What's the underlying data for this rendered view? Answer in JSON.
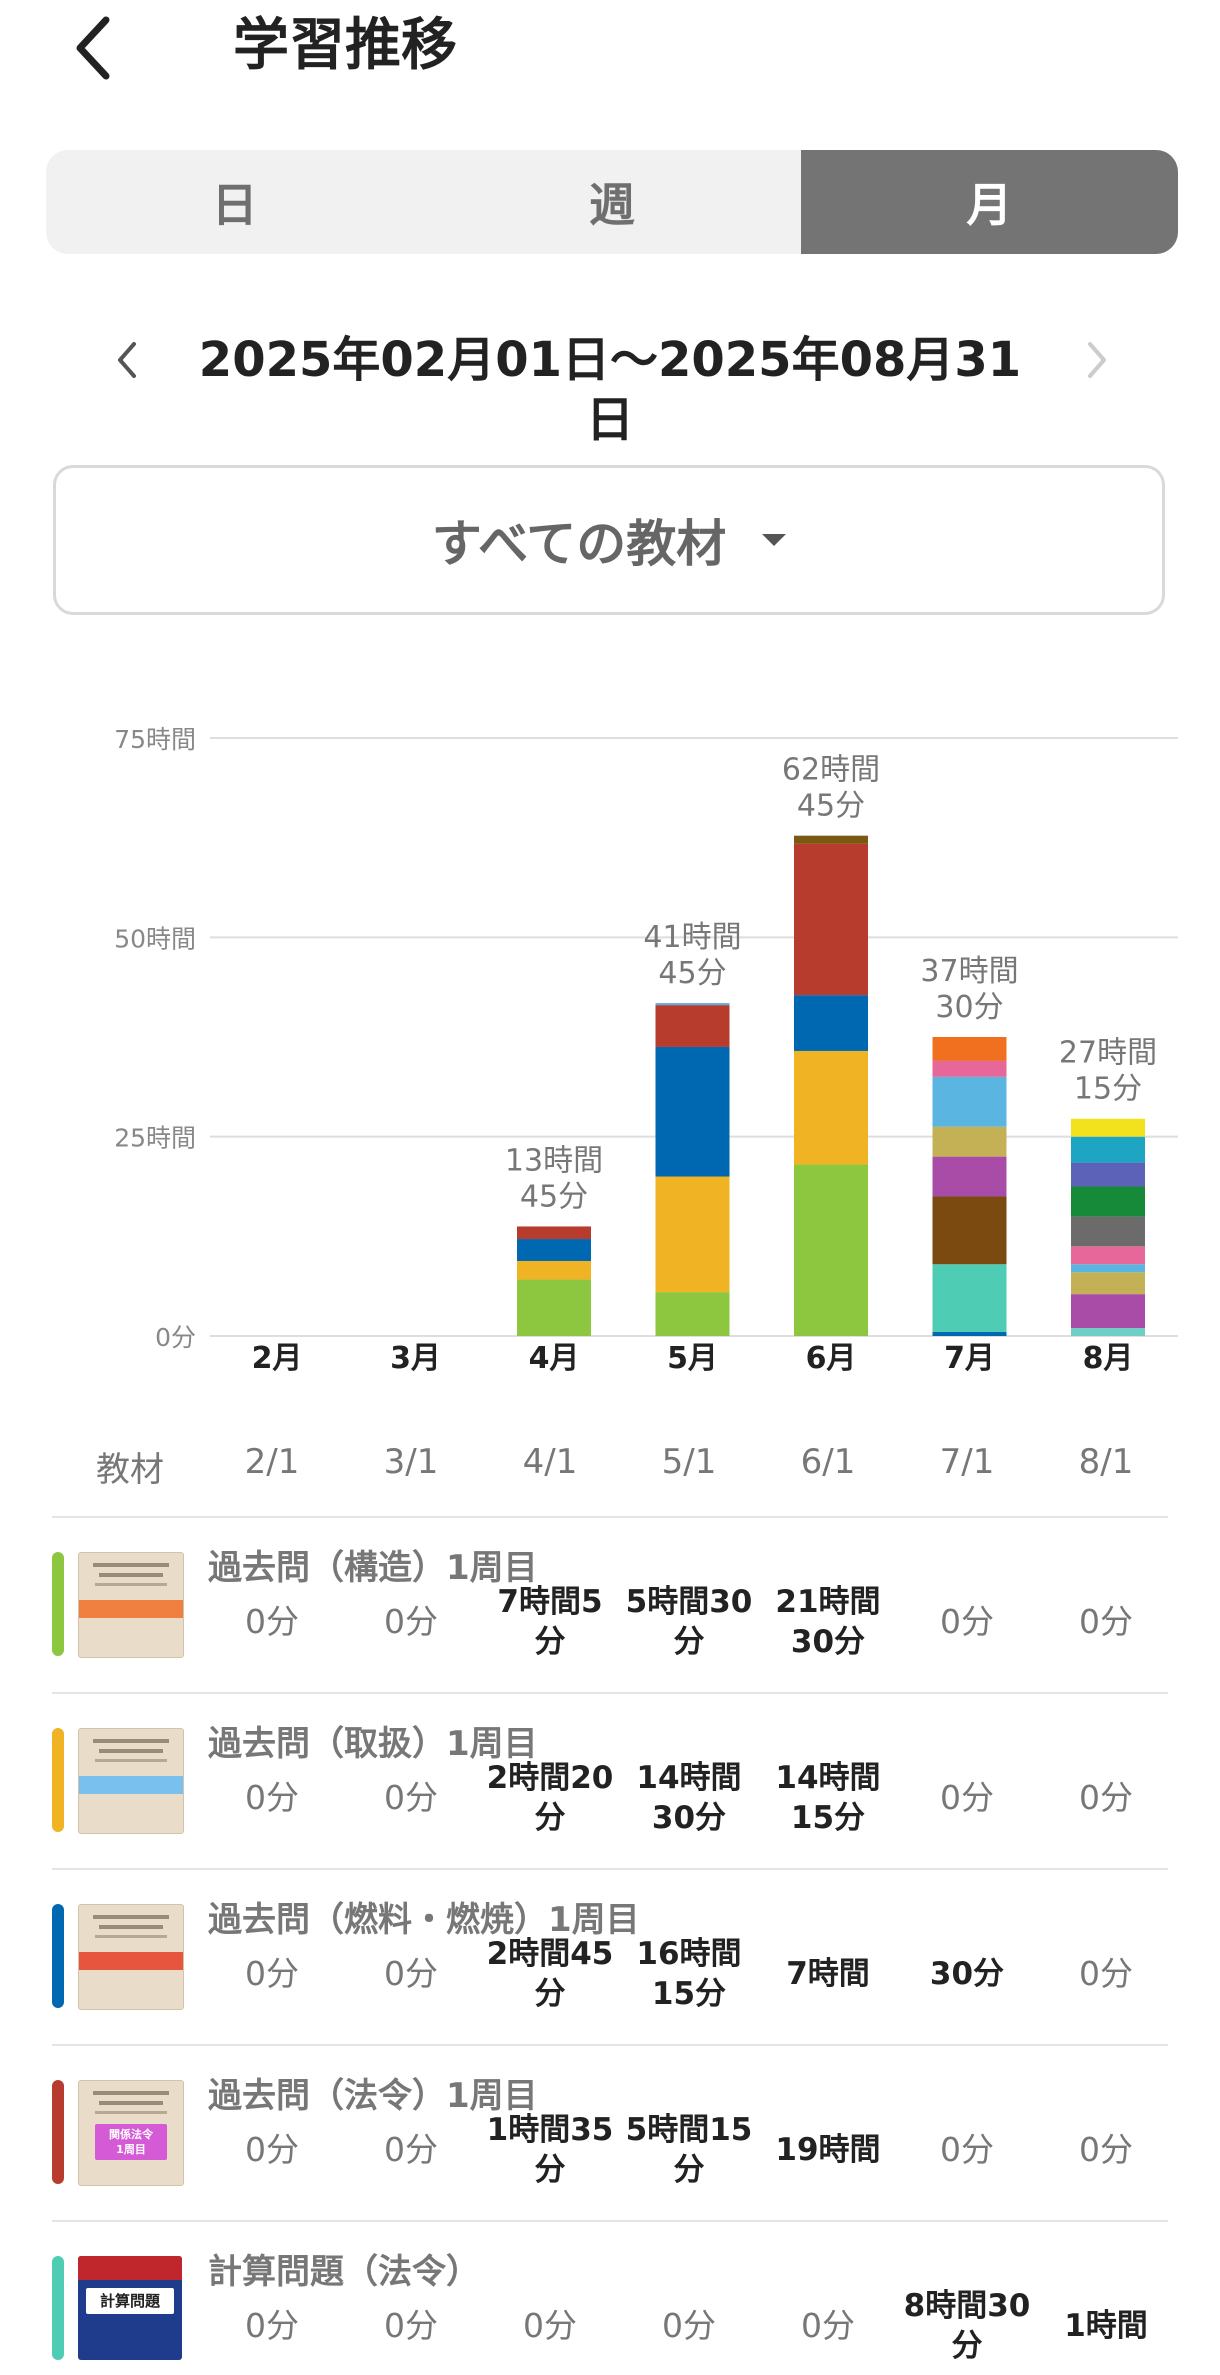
{
  "header": {
    "title": "学習推移"
  },
  "period_tabs": [
    {
      "label": "日",
      "active": false
    },
    {
      "label": "週",
      "active": false
    },
    {
      "label": "月",
      "active": true
    }
  ],
  "date_range": "2025年02月01日〜2025年08月31日",
  "material_filter": {
    "selected": "すべての教材"
  },
  "chart_data": {
    "type": "bar",
    "stacked": true,
    "categories": [
      "2月",
      "3月",
      "4月",
      "5月",
      "6月",
      "7月",
      "8月"
    ],
    "y_ticks": [
      "0分",
      "25時間",
      "50時間",
      "75時間"
    ],
    "ylim": [
      0,
      75
    ],
    "grid": true,
    "total_labels": [
      [],
      [],
      [
        "13時間",
        "45分"
      ],
      [
        "41時間",
        "45分"
      ],
      [
        "62時間",
        "45分"
      ],
      [
        "37時間",
        "30分"
      ],
      [
        "27時間",
        "15分"
      ]
    ],
    "segments": [
      [],
      [],
      [
        {
          "color": "#8dc63f",
          "hours": 7.08
        },
        {
          "color": "#f0b323",
          "hours": 2.33
        },
        {
          "color": "#0067b1",
          "hours": 2.75
        },
        {
          "color": "#b83c2d",
          "hours": 1.58
        }
      ],
      [
        {
          "color": "#8dc63f",
          "hours": 5.5
        },
        {
          "color": "#f0b323",
          "hours": 14.5
        },
        {
          "color": "#0067b1",
          "hours": 16.25
        },
        {
          "color": "#b83c2d",
          "hours": 5.25
        },
        {
          "color": "#5aaddc",
          "hours": 0.25
        }
      ],
      [
        {
          "color": "#8dc63f",
          "hours": 21.5
        },
        {
          "color": "#f0b323",
          "hours": 14.25
        },
        {
          "color": "#0067b1",
          "hours": 7
        },
        {
          "color": "#b83c2d",
          "hours": 19
        },
        {
          "color": "#7a5a12",
          "hours": 1
        }
      ],
      [
        {
          "color": "#0067b1",
          "hours": 0.5
        },
        {
          "color": "#4ecdb4",
          "hours": 8.5
        },
        {
          "color": "#7b4a10",
          "hours": 8.5
        },
        {
          "color": "#a84ca8",
          "hours": 5
        },
        {
          "color": "#c4b055",
          "hours": 3.75
        },
        {
          "color": "#5ab5e0",
          "hours": 6.25
        },
        {
          "color": "#e8679a",
          "hours": 2
        },
        {
          "color": "#f07020",
          "hours": 3
        }
      ],
      [
        {
          "color": "#6fcfc7",
          "hours": 1
        },
        {
          "color": "#a84ca8",
          "hours": 4.25
        },
        {
          "color": "#c4b055",
          "hours": 2.75
        },
        {
          "color": "#5ab5e0",
          "hours": 1
        },
        {
          "color": "#e8679a",
          "hours": 2.25
        },
        {
          "color": "#6b6b6b",
          "hours": 3.75
        },
        {
          "color": "#178a3a",
          "hours": 3.75
        },
        {
          "color": "#5c62b8",
          "hours": 3
        },
        {
          "color": "#1fa5c4",
          "hours": 3.25
        },
        {
          "color": "#f2e21e",
          "hours": 2.25
        }
      ]
    ]
  },
  "table": {
    "header_label": "教材",
    "columns": [
      "2/1",
      "3/1",
      "4/1",
      "5/1",
      "6/1",
      "7/1",
      "8/1"
    ],
    "rows": [
      {
        "name": "過去問（構造）1周目",
        "color": "#8dc63f",
        "thumb_color": "#f08040",
        "values": [
          [
            "0分"
          ],
          [
            "0分"
          ],
          [
            "7時間5",
            "分"
          ],
          [
            "5時間30",
            "分"
          ],
          [
            "21時間",
            "30分"
          ],
          [
            "0分"
          ],
          [
            "0分"
          ]
        ]
      },
      {
        "name": "過去問（取扱）1周目",
        "color": "#f0b323",
        "thumb_color": "#7ac0ef",
        "values": [
          [
            "0分"
          ],
          [
            "0分"
          ],
          [
            "2時間20",
            "分"
          ],
          [
            "14時間",
            "30分"
          ],
          [
            "14時間",
            "15分"
          ],
          [
            "0分"
          ],
          [
            "0分"
          ]
        ]
      },
      {
        "name": "過去問（燃料・燃焼）1周目",
        "color": "#0067b1",
        "thumb_color": "#e8553e",
        "values": [
          [
            "0分"
          ],
          [
            "0分"
          ],
          [
            "2時間45",
            "分"
          ],
          [
            "16時間",
            "15分"
          ],
          [
            "7時間"
          ],
          [
            "30分"
          ],
          [
            "0分"
          ]
        ]
      },
      {
        "name": "過去問（法令）1周目",
        "color": "#b83c2d",
        "thumb_color": "#d45ad6",
        "thumb_text": [
          "関係法令",
          "1周目"
        ],
        "values": [
          [
            "0分"
          ],
          [
            "0分"
          ],
          [
            "1時間35",
            "分"
          ],
          [
            "5時間15",
            "分"
          ],
          [
            "19時間"
          ],
          [
            "0分"
          ],
          [
            "0分"
          ]
        ]
      },
      {
        "name": "計算問題（法令）",
        "color": "#4ecdb4",
        "thumb_color": "#c0272d",
        "thumb_text": [
          "計算問題"
        ],
        "values": [
          [
            "0分"
          ],
          [
            "0分"
          ],
          [
            "0分"
          ],
          [
            "0分"
          ],
          [
            "0分"
          ],
          [
            "8時間30",
            "分"
          ],
          [
            "1時間"
          ]
        ]
      }
    ]
  }
}
